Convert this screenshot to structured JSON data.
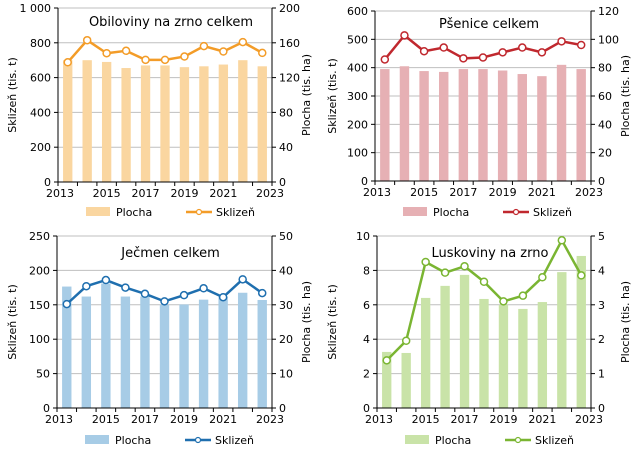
{
  "chart_data": [
    {
      "type": "bar+line",
      "title": "Obiloviny  na zrno celkem",
      "x": [
        2013,
        2014,
        2015,
        2016,
        2017,
        2018,
        2019,
        2020,
        2021,
        2022,
        2023
      ],
      "xtick_labels": [
        "2013",
        "2015",
        "2017",
        "2019",
        "2021",
        "2023"
      ],
      "ylabel": "Sklizeň (tis. t)",
      "y2label": "Plocha (tis. ha)",
      "ylim": [
        0,
        1000
      ],
      "yticks": [
        0,
        200,
        400,
        600,
        800,
        1000
      ],
      "ytick_labels": [
        "0",
        "200",
        "400",
        "600",
        "800",
        "1 000"
      ],
      "y2lim": [
        0,
        200
      ],
      "y2ticks": [
        0,
        40,
        80,
        120,
        160,
        200
      ],
      "series": [
        {
          "name": "Plocha",
          "type": "bar",
          "axis": "right",
          "color": "#FAD6A0",
          "values": [
            140,
            140,
            138,
            131,
            134,
            134,
            132,
            133,
            135,
            140,
            133
          ]
        },
        {
          "name": "Sklizeň",
          "type": "line",
          "axis": "left",
          "color": "#F39C28",
          "values": [
            688,
            815,
            740,
            754,
            702,
            702,
            721,
            781,
            750,
            804,
            742
          ]
        }
      ],
      "legend": [
        "Plocha",
        "Sklizeň"
      ],
      "legend_position": "bottom",
      "grid": true
    },
    {
      "type": "bar+line",
      "title": "Pšenice  celkem",
      "x": [
        2013,
        2014,
        2015,
        2016,
        2017,
        2018,
        2019,
        2020,
        2021,
        2022,
        2023
      ],
      "xtick_labels": [
        "2013",
        "2015",
        "2017",
        "2019",
        "2021",
        "2023"
      ],
      "ylabel": "Sklizeň (tis. t)",
      "y2label": "Plocha (tis. ha)",
      "ylim": [
        0,
        600
      ],
      "yticks": [
        0,
        100,
        200,
        300,
        400,
        500,
        600
      ],
      "ytick_labels": [
        "0",
        "100",
        "200",
        "300",
        "400",
        "500",
        "600"
      ],
      "y2lim": [
        0,
        120
      ],
      "y2ticks": [
        0,
        20,
        40,
        60,
        80,
        100,
        120
      ],
      "series": [
        {
          "name": "Plocha",
          "type": "bar",
          "axis": "right",
          "color": "#E6B0B4",
          "values": [
            79,
            81,
            77.6,
            77,
            79,
            79,
            78,
            75.5,
            74,
            82,
            79
          ]
        },
        {
          "name": "Sklizeň",
          "type": "line",
          "axis": "left",
          "color": "#C0282E",
          "values": [
            429,
            514,
            458,
            471,
            433,
            436,
            454,
            471,
            454,
            493,
            480
          ]
        }
      ],
      "legend": [
        "Plocha",
        "Sklizeň"
      ],
      "legend_position": "bottom",
      "grid": true
    },
    {
      "type": "bar+line",
      "title": "Ječmen  celkem",
      "x": [
        2013,
        2014,
        2015,
        2016,
        2017,
        2018,
        2019,
        2020,
        2021,
        2022,
        2023
      ],
      "xtick_labels": [
        "2013",
        "2015",
        "2017",
        "2019",
        "2021",
        "2023"
      ],
      "ylabel": "Sklizeň (tis. t)",
      "y2label": "Plocha (tis. ha)",
      "ylim": [
        0,
        250
      ],
      "yticks": [
        0,
        50,
        100,
        150,
        200,
        250
      ],
      "ytick_labels": [
        "0",
        "50",
        "100",
        "150",
        "200",
        "250"
      ],
      "y2lim": [
        0,
        50
      ],
      "y2ticks": [
        0,
        10,
        20,
        30,
        40,
        50
      ],
      "series": [
        {
          "name": "Plocha",
          "type": "bar",
          "axis": "right",
          "color": "#A7CCE6",
          "values": [
            35.3,
            32.4,
            36.2,
            32.4,
            32.4,
            30,
            30.1,
            31.5,
            32.4,
            33.5,
            31.4
          ]
        },
        {
          "name": "Sklizeň",
          "type": "line",
          "axis": "left",
          "color": "#1F6FAF",
          "values": [
            151,
            177,
            186,
            175,
            166,
            155,
            164,
            174,
            161,
            187,
            167
          ]
        }
      ],
      "legend": [
        "Plocha",
        "Sklizeň"
      ],
      "legend_position": "bottom",
      "grid": true
    },
    {
      "type": "bar+line",
      "title": "Luskoviny  na zrno",
      "x": [
        2013,
        2014,
        2015,
        2016,
        2017,
        2018,
        2019,
        2020,
        2021,
        2022,
        2023
      ],
      "xtick_labels": [
        "2013",
        "2015",
        "2017",
        "2019",
        "2021",
        "2023"
      ],
      "ylabel": "Sklizeň (tis. t)",
      "y2label": "Plocha (tis. ha)",
      "ylim": [
        0,
        10
      ],
      "yticks": [
        0,
        2,
        4,
        6,
        8,
        10
      ],
      "ytick_labels": [
        "0",
        "2",
        "4",
        "6",
        "8",
        "10"
      ],
      "y2lim": [
        0,
        5
      ],
      "y2ticks": [
        0,
        1,
        2,
        3,
        4,
        5
      ],
      "series": [
        {
          "name": "Plocha",
          "type": "bar",
          "axis": "right",
          "color": "#C9E3A8",
          "values": [
            1.63,
            1.6,
            3.2,
            3.55,
            3.87,
            3.17,
            3.0,
            2.88,
            3.08,
            3.95,
            4.42
          ]
        },
        {
          "name": "Sklizeň",
          "type": "line",
          "axis": "left",
          "color": "#7AB532",
          "values": [
            2.77,
            3.91,
            8.49,
            7.87,
            8.24,
            7.34,
            6.2,
            6.53,
            7.6,
            9.75,
            7.71
          ]
        }
      ],
      "legend": [
        "Plocha",
        "Sklizeň"
      ],
      "legend_position": "bottom",
      "grid": true
    }
  ]
}
